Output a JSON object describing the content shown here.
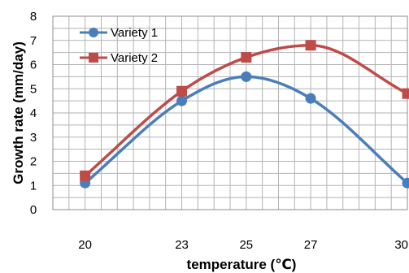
{
  "chart_data": {
    "type": "line",
    "title": "",
    "xlabel": "temperature (℃)",
    "ylabel": "Growth rate (mm/day)",
    "x": [
      20,
      23,
      25,
      27,
      30
    ],
    "x_ticks": [
      "20",
      "23",
      "25",
      "27",
      "30"
    ],
    "xlim": [
      19,
      30
    ],
    "ylim": [
      0,
      8
    ],
    "y_ticks": [
      "0",
      "1",
      "2",
      "3",
      "4",
      "5",
      "6",
      "7",
      "8"
    ],
    "grid": true,
    "legend_position": "top-left",
    "series": [
      {
        "name": "Variety 1",
        "color": "#4A7EBB",
        "marker": "circle",
        "values": [
          1.1,
          4.5,
          5.5,
          4.6,
          1.1
        ]
      },
      {
        "name": "Variety 2",
        "color": "#BE4B48",
        "marker": "square",
        "values": [
          1.4,
          4.9,
          6.3,
          6.8,
          4.8
        ]
      }
    ]
  }
}
